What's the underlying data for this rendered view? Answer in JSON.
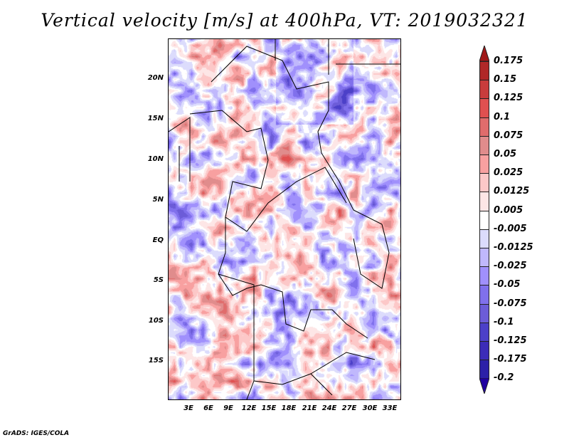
{
  "title": "Vertical velocity [m/s] at 400hPa, VT: 2019032321",
  "footer": "GrADS: IGES/COLA",
  "map": {
    "lat_labels": [
      "20N",
      "15N",
      "10N",
      "5N",
      "EQ",
      "5S",
      "10S",
      "15S"
    ],
    "lon_labels": [
      "3E",
      "6E",
      "9E",
      "12E",
      "15E",
      "18E",
      "21E",
      "24E",
      "27E",
      "30E",
      "33E"
    ]
  },
  "colorbar": {
    "labels": [
      "0.175",
      "0.15",
      "0.125",
      "0.1",
      "0.075",
      "0.05",
      "0.025",
      "0.0125",
      "0.005",
      "-0.005",
      "-0.0125",
      "-0.025",
      "-0.05",
      "-0.075",
      "-0.1",
      "-0.125",
      "-0.175",
      "-0.2"
    ],
    "top_arrow_color": "#a01818",
    "bottom_arrow_color": "#2000a0",
    "colors": [
      "#b02828",
      "#c83c3c",
      "#e05050",
      "#e06c6c",
      "#e08c8c",
      "#f8a0a0",
      "#fcc8c8",
      "#fde6e6",
      "#ffffff",
      "#dcdcfc",
      "#c0b8fc",
      "#a090fc",
      "#8070ec",
      "#6c5cd8",
      "#4c40c8",
      "#3c2cb8",
      "#2c20a8"
    ]
  }
}
